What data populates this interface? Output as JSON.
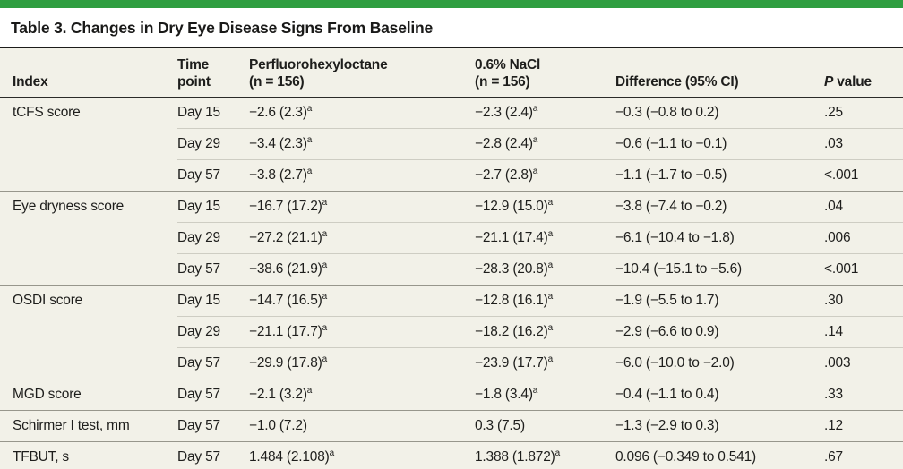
{
  "colors": {
    "accent_green": "#2f9e41",
    "table_background": "#f2f1e8",
    "rule_dark": "#1c1c1a",
    "divider_group": "#97968c",
    "divider_sub": "#cecdc3"
  },
  "title": "Table 3. Changes in Dry Eye Disease Signs From Baseline",
  "table": {
    "headers": {
      "index": "Index",
      "time": {
        "line1": "Time",
        "line2": "point"
      },
      "pfho": {
        "line1": "Perfluorohexyloctane",
        "line2": "(n = 156)"
      },
      "nacl": {
        "line1": "0.6% NaCl",
        "line2": "(n = 156)"
      },
      "diff": "Difference (95% CI)",
      "p_italic": "P",
      "p_rest": " value"
    },
    "rows": [
      {
        "index": "tCFS score",
        "time": "Day 15",
        "pfho": "−2.6 (2.3)",
        "pfho_sup": "a",
        "nacl": "−2.3 (2.4)",
        "nacl_sup": "a",
        "diff": "−0.3 (−0.8 to 0.2)",
        "p": ".25",
        "group": true
      },
      {
        "index": "",
        "time": "Day 29",
        "pfho": "−3.4 (2.3)",
        "pfho_sup": "a",
        "nacl": "−2.8 (2.4)",
        "nacl_sup": "a",
        "diff": "−0.6 (−1.1 to −0.1)",
        "p": ".03",
        "group": false
      },
      {
        "index": "",
        "time": "Day 57",
        "pfho": "−3.8 (2.7)",
        "pfho_sup": "a",
        "nacl": "−2.7 (2.8)",
        "nacl_sup": "a",
        "diff": "−1.1 (−1.7 to −0.5)",
        "p": "<.001",
        "group": false
      },
      {
        "index": "Eye dryness score",
        "time": "Day 15",
        "pfho": "−16.7 (17.2)",
        "pfho_sup": "a",
        "nacl": "−12.9 (15.0)",
        "nacl_sup": "a",
        "diff": "−3.8 (−7.4 to −0.2)",
        "p": ".04",
        "group": true
      },
      {
        "index": "",
        "time": "Day 29",
        "pfho": "−27.2 (21.1)",
        "pfho_sup": "a",
        "nacl": "−21.1 (17.4)",
        "nacl_sup": "a",
        "diff": "−6.1 (−10.4 to −1.8)",
        "p": ".006",
        "group": false
      },
      {
        "index": "",
        "time": "Day 57",
        "pfho": "−38.6 (21.9)",
        "pfho_sup": "a",
        "nacl": "−28.3 (20.8)",
        "nacl_sup": "a",
        "diff": "−10.4 (−15.1 to −5.6)",
        "p": "<.001",
        "group": false
      },
      {
        "index": "OSDI score",
        "time": "Day 15",
        "pfho": "−14.7 (16.5)",
        "pfho_sup": "a",
        "nacl": "−12.8 (16.1)",
        "nacl_sup": "a",
        "diff": "−1.9 (−5.5 to 1.7)",
        "p": ".30",
        "group": true
      },
      {
        "index": "",
        "time": "Day 29",
        "pfho": "−21.1 (17.7)",
        "pfho_sup": "a",
        "nacl": "−18.2 (16.2)",
        "nacl_sup": "a",
        "diff": "−2.9 (−6.6 to 0.9)",
        "p": ".14",
        "group": false
      },
      {
        "index": "",
        "time": "Day 57",
        "pfho": "−29.9 (17.8)",
        "pfho_sup": "a",
        "nacl": "−23.9 (17.7)",
        "nacl_sup": "a",
        "diff": "−6.0 (−10.0 to −2.0)",
        "p": ".003",
        "group": false
      },
      {
        "index": "MGD score",
        "time": "Day 57",
        "pfho": "−2.1 (3.2)",
        "pfho_sup": "a",
        "nacl": "−1.8 (3.4)",
        "nacl_sup": "a",
        "diff": "−0.4 (−1.1 to 0.4)",
        "p": ".33",
        "group": true
      },
      {
        "index": "Schirmer I test, mm",
        "time": "Day 57",
        "pfho": "−1.0 (7.2)",
        "pfho_sup": "",
        "nacl": "0.3 (7.5)",
        "nacl_sup": "",
        "diff": "−1.3 (−2.9 to 0.3)",
        "p": ".12",
        "group": true
      },
      {
        "index": "TFBUT, s",
        "time": "Day 57",
        "pfho": "1.484 (2.108)",
        "pfho_sup": "a",
        "nacl": "1.388 (1.872)",
        "nacl_sup": "a",
        "diff": "0.096 (−0.349 to 0.541)",
        "p": ".67",
        "group": true
      }
    ]
  }
}
